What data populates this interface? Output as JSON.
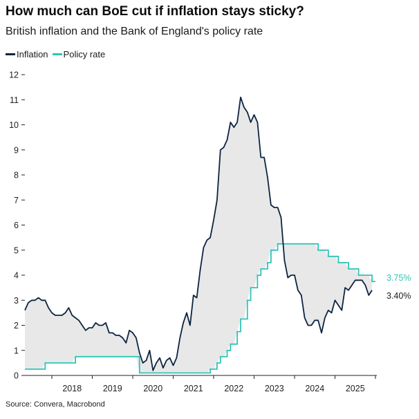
{
  "colors": {
    "inflation": "#0c2340",
    "policy_rate": "#2ec4b6",
    "fill": "#e8e8e8",
    "axis": "#222222"
  },
  "chart_data": {
    "type": "line",
    "title": "How much can BoE cut if inflation stays sticky?",
    "subtitle": "British inflation and the Bank of England's policy rate",
    "source": "Source: Convera, Macrobond",
    "ylim": [
      0,
      12
    ],
    "yticks": [
      0,
      1,
      2,
      3,
      4,
      5,
      6,
      7,
      8,
      9,
      10,
      11,
      12
    ],
    "xlim": [
      "2017-05",
      "2025-09"
    ],
    "xtick_labels": [
      "2018",
      "2019",
      "2020",
      "2021",
      "2022",
      "2023",
      "2024",
      "2025"
    ],
    "legend": {
      "position": "top-left"
    },
    "grid": false,
    "shaded_between_series": true,
    "end_labels": {
      "policy_rate": "3.75%",
      "inflation": "3.40%"
    },
    "series": [
      {
        "name": "Inflation",
        "color": "#0c2340",
        "points": [
          [
            "2017-05",
            2.6
          ],
          [
            "2017-06",
            2.9
          ],
          [
            "2017-07",
            3.0
          ],
          [
            "2017-08",
            3.0
          ],
          [
            "2017-09",
            3.1
          ],
          [
            "2017-10",
            3.0
          ],
          [
            "2017-11",
            3.0
          ],
          [
            "2017-12",
            2.7
          ],
          [
            "2018-01",
            2.5
          ],
          [
            "2018-02",
            2.4
          ],
          [
            "2018-03",
            2.4
          ],
          [
            "2018-04",
            2.4
          ],
          [
            "2018-05",
            2.5
          ],
          [
            "2018-06",
            2.7
          ],
          [
            "2018-07",
            2.4
          ],
          [
            "2018-08",
            2.3
          ],
          [
            "2018-09",
            2.2
          ],
          [
            "2018-10",
            2.0
          ],
          [
            "2018-11",
            1.8
          ],
          [
            "2018-12",
            1.9
          ],
          [
            "2019-01",
            1.9
          ],
          [
            "2019-02",
            2.1
          ],
          [
            "2019-03",
            2.0
          ],
          [
            "2019-04",
            2.0
          ],
          [
            "2019-05",
            2.1
          ],
          [
            "2019-06",
            1.7
          ],
          [
            "2019-07",
            1.7
          ],
          [
            "2019-08",
            1.6
          ],
          [
            "2019-09",
            1.6
          ],
          [
            "2019-10",
            1.5
          ],
          [
            "2019-11",
            1.3
          ],
          [
            "2019-12",
            1.8
          ],
          [
            "2020-01",
            1.7
          ],
          [
            "2020-02",
            1.5
          ],
          [
            "2020-03",
            0.9
          ],
          [
            "2020-04",
            0.5
          ],
          [
            "2020-05",
            0.6
          ],
          [
            "2020-06",
            1.0
          ],
          [
            "2020-07",
            0.2
          ],
          [
            "2020-08",
            0.5
          ],
          [
            "2020-09",
            0.7
          ],
          [
            "2020-10",
            0.3
          ],
          [
            "2020-11",
            0.6
          ],
          [
            "2020-12",
            0.7
          ],
          [
            "2021-01",
            0.4
          ],
          [
            "2021-02",
            0.7
          ],
          [
            "2021-03",
            1.5
          ],
          [
            "2021-04",
            2.1
          ],
          [
            "2021-05",
            2.5
          ],
          [
            "2021-06",
            2.0
          ],
          [
            "2021-07",
            3.2
          ],
          [
            "2021-08",
            3.1
          ],
          [
            "2021-09",
            4.2
          ],
          [
            "2021-10",
            5.1
          ],
          [
            "2021-11",
            5.4
          ],
          [
            "2021-12",
            5.5
          ],
          [
            "2022-01",
            6.2
          ],
          [
            "2022-02",
            7.0
          ],
          [
            "2022-03",
            9.0
          ],
          [
            "2022-04",
            9.1
          ],
          [
            "2022-05",
            9.4
          ],
          [
            "2022-06",
            10.1
          ],
          [
            "2022-07",
            9.9
          ],
          [
            "2022-08",
            10.1
          ],
          [
            "2022-09",
            11.1
          ],
          [
            "2022-10",
            10.7
          ],
          [
            "2022-11",
            10.5
          ],
          [
            "2022-12",
            10.1
          ],
          [
            "2023-01",
            10.4
          ],
          [
            "2023-02",
            10.1
          ],
          [
            "2023-03",
            8.7
          ],
          [
            "2023-04",
            8.7
          ],
          [
            "2023-05",
            7.9
          ],
          [
            "2023-06",
            6.8
          ],
          [
            "2023-07",
            6.7
          ],
          [
            "2023-08",
            6.7
          ],
          [
            "2023-09",
            6.3
          ],
          [
            "2023-10",
            4.6
          ],
          [
            "2023-11",
            3.9
          ],
          [
            "2023-12",
            4.0
          ],
          [
            "2024-01",
            4.0
          ],
          [
            "2024-02",
            3.4
          ],
          [
            "2024-03",
            3.2
          ],
          [
            "2024-04",
            2.3
          ],
          [
            "2024-05",
            2.0
          ],
          [
            "2024-06",
            2.0
          ],
          [
            "2024-07",
            2.2
          ],
          [
            "2024-08",
            2.2
          ],
          [
            "2024-09",
            1.7
          ],
          [
            "2024-10",
            2.3
          ],
          [
            "2024-11",
            2.6
          ],
          [
            "2024-12",
            2.5
          ],
          [
            "2025-01",
            3.0
          ],
          [
            "2025-02",
            2.8
          ],
          [
            "2025-03",
            2.6
          ],
          [
            "2025-04",
            3.5
          ],
          [
            "2025-05",
            3.4
          ],
          [
            "2025-06",
            3.6
          ],
          [
            "2025-07",
            3.8
          ],
          [
            "2025-08",
            3.8
          ],
          [
            "2025-09",
            3.8
          ],
          [
            "2025-10",
            3.6
          ],
          [
            "2025-11",
            3.2
          ],
          [
            "2025-12",
            3.4
          ]
        ]
      },
      {
        "name": "Policy rate",
        "color": "#2ec4b6",
        "step": true,
        "points": [
          [
            "2017-05",
            0.25
          ],
          [
            "2017-11",
            0.5
          ],
          [
            "2018-08",
            0.75
          ],
          [
            "2020-03",
            0.1
          ],
          [
            "2021-12",
            0.25
          ],
          [
            "2022-02",
            0.5
          ],
          [
            "2022-03",
            0.75
          ],
          [
            "2022-05",
            1.0
          ],
          [
            "2022-06",
            1.25
          ],
          [
            "2022-08",
            1.75
          ],
          [
            "2022-09",
            2.25
          ],
          [
            "2022-11",
            3.0
          ],
          [
            "2022-12",
            3.5
          ],
          [
            "2023-02",
            4.0
          ],
          [
            "2023-03",
            4.25
          ],
          [
            "2023-05",
            4.5
          ],
          [
            "2023-06",
            5.0
          ],
          [
            "2023-08",
            5.25
          ],
          [
            "2024-08",
            5.0
          ],
          [
            "2024-11",
            4.75
          ],
          [
            "2025-02",
            4.5
          ],
          [
            "2025-05",
            4.25
          ],
          [
            "2025-08",
            4.0
          ],
          [
            "2025-12",
            3.75
          ],
          [
            "2026-01",
            3.75
          ]
        ]
      }
    ]
  }
}
